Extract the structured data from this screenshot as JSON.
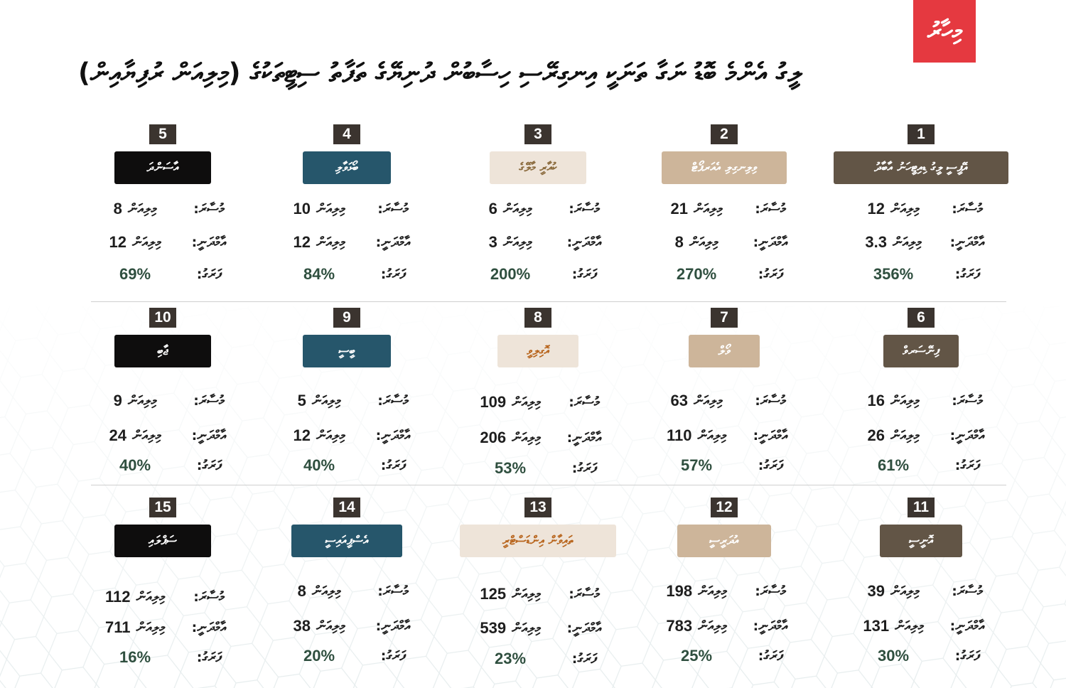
{
  "header": {
    "logo_text": "މިހާރު",
    "title": "ލީގު އެންމެ ބޮޑު ނަގާ ތަނަކީ އިނގިރޭސި ހިސާބުން ދުނިޔޭގެ ތަފާތު ސިޓީތަކުގެ (މިލިއަން ރުފިޔާއިން)"
  },
  "labels": {
    "listed": "މުސާރަ:",
    "rent": "އާމްދަނީ:",
    "change": "ފަރަގު:",
    "unit": "މިލިއަން"
  },
  "colors": {
    "c1": "#625546",
    "c2": "#cdb59a",
    "c3": "#eee4d9",
    "c4": "#26566b",
    "c5": "#0e0d0d",
    "pct": "#2f4f3f",
    "brand_red": "#e53940"
  },
  "cards": [
    {
      "rank": "1",
      "city": "އޭޕީސީ ލީގު ޑިއިޓީހަނު އާބާދު",
      "listed": "12",
      "rent": "3.3",
      "change": "356%"
    },
    {
      "rank": "2",
      "city": "ވިލިނގިލި އެއަރޕޯޓް",
      "listed": "21",
      "rent": "8",
      "change": "270%"
    },
    {
      "rank": "3",
      "city": "ކުއާރީ މާލޭގެ",
      "listed": "6",
      "rent": "3",
      "change": "200%"
    },
    {
      "rank": "4",
      "city": "ބޯޅަވާލި",
      "listed": "10",
      "rent": "12",
      "change": "84%"
    },
    {
      "rank": "5",
      "city": "އާސަންދަ",
      "listed": "8",
      "rent": "12",
      "change": "69%"
    },
    {
      "rank": "6",
      "city": "ފިނޭސަރވް",
      "listed": "16",
      "rent": "26",
      "change": "61%"
    },
    {
      "rank": "7",
      "city": "ވޯލް",
      "listed": "63",
      "rent": "110",
      "change": "57%"
    },
    {
      "rank": "8",
      "city": "އޮގިލިވީ",
      "listed": "109",
      "rent": "206",
      "change": "53%"
    },
    {
      "rank": "9",
      "city": "ބީސީ",
      "listed": "5",
      "rent": "12",
      "change": "40%"
    },
    {
      "rank": "10",
      "city": "ޖާބި",
      "listed": "9",
      "rent": "24",
      "change": "40%"
    },
    {
      "rank": "11",
      "city": "އޮނީސީ",
      "listed": "39",
      "rent": "131",
      "change": "30%"
    },
    {
      "rank": "12",
      "city": "އުދަރީސީ",
      "listed": "198",
      "rent": "783",
      "change": "25%"
    },
    {
      "rank": "13",
      "city": "ތައިވާން އިންޑަސްޓްރީ",
      "listed": "125",
      "rent": "539",
      "change": "23%"
    },
    {
      "rank": "14",
      "city": "އެސްޕީއައިސީ",
      "listed": "8",
      "rent": "38",
      "change": "20%"
    },
    {
      "rank": "15",
      "city": "ސަޕްލައި",
      "listed": "112",
      "rent": "711",
      "change": "16%"
    }
  ]
}
